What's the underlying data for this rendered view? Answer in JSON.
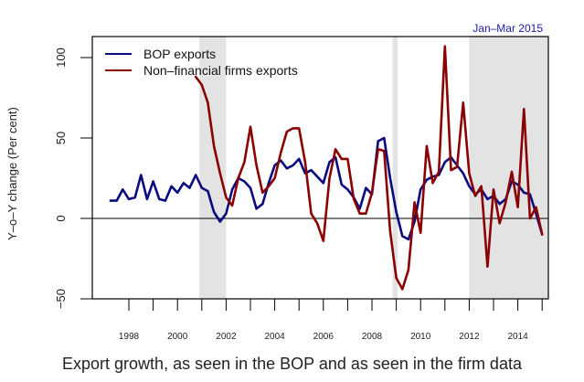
{
  "chart_data": {
    "type": "line",
    "title": "",
    "caption": "Export growth, as seen in the BOP and as seen in the firm data",
    "annotation": "Jan–Mar 2015",
    "xlabel": "",
    "ylabel": "Y–o–Y change (Per cent)",
    "xlim": [
      1996.5,
      2015.3
    ],
    "ylim": [
      -50,
      115
    ],
    "x_ticks": [
      1998,
      1999,
      2000,
      2001,
      2002,
      2003,
      2004,
      2005,
      2006,
      2007,
      2008,
      2009,
      2010,
      2011,
      2012,
      2013,
      2014,
      2015
    ],
    "x_tick_labels": [
      "1998",
      "2000",
      "2002",
      "2004",
      "2006",
      "2008",
      "2010",
      "2012",
      "2014"
    ],
    "x_tick_label_years": [
      1998,
      2000,
      2002,
      2004,
      2006,
      2008,
      2010,
      2012,
      2014
    ],
    "y_ticks": [
      -50,
      0,
      50,
      100
    ],
    "y_tick_labels": [
      "-50",
      "0",
      "50",
      "100"
    ],
    "reference_line": 0,
    "grid": false,
    "legend_position": "top-left",
    "shaded_periods": [
      [
        2000.9,
        2002.0
      ],
      [
        2008.85,
        2009.05
      ],
      [
        2012.0,
        2015.25
      ]
    ],
    "colors": {
      "bop": "#0a0a80",
      "firms": "#8b0000",
      "shade": "#e3e3e3",
      "annotation": "#1a1aa6"
    },
    "series": [
      {
        "name": "BOP exports",
        "color": "#0a0a80",
        "x": [
          1997.25,
          1997.5,
          1997.75,
          1998.0,
          1998.25,
          1998.5,
          1998.75,
          1999.0,
          1999.25,
          1999.5,
          1999.75,
          2000.0,
          2000.25,
          2000.5,
          2000.75,
          2001.0,
          2001.25,
          2001.5,
          2001.75,
          2002.0,
          2002.25,
          2002.5,
          2002.75,
          2003.0,
          2003.25,
          2003.5,
          2003.75,
          2004.0,
          2004.25,
          2004.5,
          2004.75,
          2005.0,
          2005.25,
          2005.5,
          2005.75,
          2006.0,
          2006.25,
          2006.5,
          2006.75,
          2007.0,
          2007.25,
          2007.5,
          2007.75,
          2008.0,
          2008.25,
          2008.5,
          2008.75,
          2009.0,
          2009.25,
          2009.5,
          2009.75,
          2010.0,
          2010.25,
          2010.5,
          2010.75,
          2011.0,
          2011.25,
          2011.5,
          2011.75,
          2012.0,
          2012.25,
          2012.5,
          2012.75,
          2013.0,
          2013.25,
          2013.5,
          2013.75,
          2014.0,
          2014.25,
          2014.5,
          2014.75,
          2015.0
        ],
        "values": [
          11,
          11,
          18,
          12,
          13,
          27,
          12,
          23,
          12,
          11,
          20,
          16,
          22,
          19,
          27,
          19,
          17,
          4,
          -2,
          3,
          18,
          25,
          23,
          19,
          6,
          9,
          22,
          33,
          36,
          31,
          33,
          37,
          28,
          30,
          26,
          22,
          35,
          38,
          21,
          18,
          13,
          6,
          19,
          15,
          48,
          50,
          25,
          4,
          -11,
          -13,
          -2,
          18,
          24,
          26,
          27,
          35,
          38,
          33,
          28,
          20,
          15,
          18,
          12,
          14,
          9,
          12,
          23,
          21,
          16,
          15,
          3,
          -10
        ]
      },
      {
        "name": "Non–financial firms exports",
        "color": "#8b0000",
        "x": [
          2000.75,
          2001.0,
          2001.25,
          2001.5,
          2001.75,
          2002.0,
          2002.25,
          2002.5,
          2002.75,
          2003.0,
          2003.25,
          2003.5,
          2003.75,
          2004.0,
          2004.25,
          2004.5,
          2004.75,
          2005.0,
          2005.25,
          2005.5,
          2005.75,
          2006.0,
          2006.25,
          2006.5,
          2006.75,
          2007.0,
          2007.25,
          2007.5,
          2007.75,
          2008.0,
          2008.25,
          2008.5,
          2008.75,
          2009.0,
          2009.25,
          2009.5,
          2009.75,
          2010.0,
          2010.25,
          2010.5,
          2010.75,
          2011.0,
          2011.25,
          2011.5,
          2011.75,
          2012.0,
          2012.25,
          2012.5,
          2012.75,
          2013.0,
          2013.25,
          2013.5,
          2013.75,
          2014.0,
          2014.25,
          2014.5,
          2014.75,
          2015.0
        ],
        "values": [
          88,
          83,
          72,
          45,
          28,
          13,
          8,
          25,
          35,
          57,
          33,
          16,
          20,
          25,
          41,
          54,
          56,
          56,
          35,
          3,
          -3,
          -14,
          25,
          43,
          37,
          37,
          12,
          3,
          3,
          16,
          43,
          42,
          -8,
          -37,
          -44,
          -32,
          10,
          -9,
          45,
          22,
          29,
          107,
          30,
          32,
          72,
          28,
          14,
          20,
          -30,
          18,
          -3,
          10,
          29,
          7,
          68,
          0,
          7,
          -10
        ]
      }
    ]
  }
}
